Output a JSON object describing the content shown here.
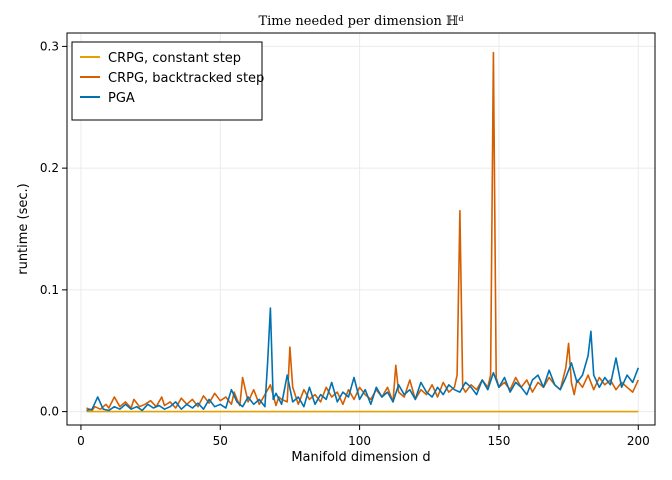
{
  "chart_data": {
    "type": "line",
    "title": "Time needed per dimension ℍᵈ",
    "xlabel": "Manifold dimension d",
    "ylabel": "runtime (sec.)",
    "xlim": [
      -5,
      206
    ],
    "ylim": [
      -0.011,
      0.311
    ],
    "xticks": [
      0,
      50,
      100,
      150,
      200
    ],
    "yticks": [
      0.0,
      0.1,
      0.2,
      0.3
    ],
    "xtick_labels": [
      "0",
      "50",
      "100",
      "150",
      "200"
    ],
    "ytick_labels": [
      "0.0",
      "0.1",
      "0.2",
      "0.3"
    ],
    "grid": true,
    "legend_position": "top-left",
    "series": [
      {
        "name": "CRPG, constant step",
        "color": "#e69f00",
        "x": [
          2,
          200
        ],
        "y": [
          0.0,
          0.0
        ]
      },
      {
        "name": "CRPG, backtracked step",
        "color": "#d55e00",
        "x": [
          2,
          4,
          5,
          7,
          9,
          10,
          12,
          14,
          16,
          18,
          19,
          21,
          23,
          25,
          27,
          29,
          30,
          32,
          34,
          36,
          38,
          40,
          42,
          44,
          46,
          48,
          50,
          52,
          54,
          55,
          56,
          57,
          58,
          60,
          62,
          64,
          66,
          68,
          70,
          71,
          72,
          74,
          75,
          76,
          78,
          80,
          82,
          84,
          86,
          88,
          90,
          92,
          94,
          96,
          98,
          100,
          102,
          104,
          106,
          108,
          110,
          112,
          113,
          114,
          116,
          118,
          120,
          122,
          124,
          126,
          128,
          130,
          132,
          134,
          135,
          136,
          137,
          138,
          140,
          142,
          144,
          146,
          147,
          148,
          149,
          150,
          152,
          154,
          156,
          158,
          160,
          162,
          164,
          166,
          168,
          170,
          172,
          174,
          175,
          176,
          177,
          178,
          180,
          182,
          184,
          186,
          188,
          190,
          192,
          194,
          196,
          198,
          200
        ],
        "y": [
          0.003,
          0.001,
          0.004,
          0.002,
          0.006,
          0.003,
          0.012,
          0.004,
          0.008,
          0.003,
          0.01,
          0.004,
          0.006,
          0.009,
          0.004,
          0.012,
          0.005,
          0.008,
          0.003,
          0.011,
          0.006,
          0.01,
          0.004,
          0.013,
          0.007,
          0.015,
          0.009,
          0.012,
          0.006,
          0.016,
          0.01,
          0.005,
          0.028,
          0.008,
          0.018,
          0.006,
          0.014,
          0.022,
          0.005,
          0.012,
          0.01,
          0.008,
          0.053,
          0.02,
          0.006,
          0.018,
          0.01,
          0.014,
          0.008,
          0.02,
          0.012,
          0.016,
          0.006,
          0.018,
          0.01,
          0.02,
          0.014,
          0.01,
          0.018,
          0.012,
          0.02,
          0.008,
          0.038,
          0.016,
          0.012,
          0.026,
          0.01,
          0.018,
          0.014,
          0.022,
          0.012,
          0.024,
          0.016,
          0.02,
          0.03,
          0.165,
          0.02,
          0.016,
          0.022,
          0.018,
          0.026,
          0.02,
          0.03,
          0.295,
          0.028,
          0.02,
          0.024,
          0.018,
          0.028,
          0.02,
          0.026,
          0.016,
          0.024,
          0.02,
          0.028,
          0.022,
          0.018,
          0.036,
          0.056,
          0.024,
          0.014,
          0.026,
          0.02,
          0.03,
          0.018,
          0.028,
          0.022,
          0.026,
          0.018,
          0.024,
          0.02,
          0.016,
          0.026
        ]
      },
      {
        "name": "PGA",
        "color": "#0072b2",
        "x": [
          2,
          4,
          6,
          8,
          10,
          12,
          14,
          16,
          18,
          20,
          22,
          24,
          26,
          28,
          30,
          32,
          34,
          36,
          38,
          40,
          42,
          44,
          46,
          48,
          50,
          52,
          54,
          56,
          58,
          60,
          62,
          64,
          66,
          67,
          68,
          69,
          70,
          72,
          74,
          76,
          78,
          80,
          82,
          84,
          86,
          88,
          90,
          92,
          94,
          96,
          98,
          100,
          102,
          104,
          106,
          108,
          110,
          112,
          114,
          116,
          118,
          120,
          122,
          124,
          126,
          128,
          130,
          132,
          134,
          136,
          138,
          140,
          142,
          144,
          146,
          148,
          150,
          152,
          154,
          156,
          158,
          160,
          162,
          164,
          166,
          168,
          170,
          172,
          174,
          176,
          178,
          180,
          182,
          183,
          184,
          186,
          188,
          190,
          192,
          194,
          196,
          198,
          200
        ],
        "y": [
          0.001,
          0.002,
          0.012,
          0.002,
          0.001,
          0.004,
          0.002,
          0.006,
          0.002,
          0.004,
          0.001,
          0.006,
          0.003,
          0.005,
          0.002,
          0.004,
          0.008,
          0.002,
          0.006,
          0.003,
          0.007,
          0.002,
          0.01,
          0.004,
          0.006,
          0.003,
          0.018,
          0.008,
          0.004,
          0.012,
          0.006,
          0.01,
          0.004,
          0.04,
          0.085,
          0.01,
          0.015,
          0.006,
          0.03,
          0.008,
          0.012,
          0.004,
          0.02,
          0.006,
          0.014,
          0.01,
          0.024,
          0.008,
          0.016,
          0.012,
          0.028,
          0.01,
          0.018,
          0.006,
          0.02,
          0.012,
          0.016,
          0.008,
          0.022,
          0.014,
          0.018,
          0.01,
          0.024,
          0.016,
          0.012,
          0.02,
          0.014,
          0.022,
          0.018,
          0.016,
          0.024,
          0.02,
          0.014,
          0.026,
          0.018,
          0.032,
          0.02,
          0.028,
          0.016,
          0.024,
          0.02,
          0.014,
          0.026,
          0.03,
          0.02,
          0.034,
          0.022,
          0.018,
          0.028,
          0.04,
          0.024,
          0.03,
          0.046,
          0.066,
          0.03,
          0.02,
          0.028,
          0.022,
          0.044,
          0.02,
          0.03,
          0.024,
          0.036
        ]
      }
    ]
  }
}
